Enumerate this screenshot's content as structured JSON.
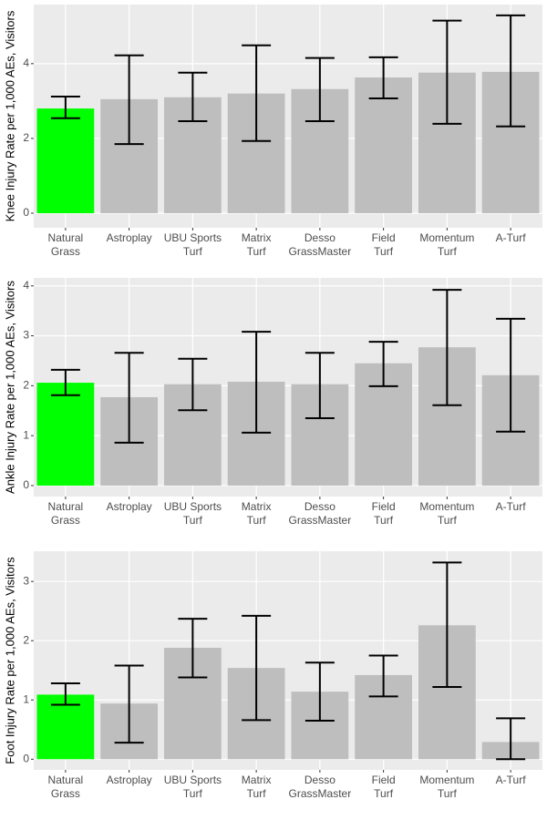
{
  "chart_data": [
    {
      "type": "bar",
      "y_label": "Knee Injury Rate per 1,000 AEs, Visitors",
      "categories": [
        "Natural\nGrass",
        "Astroplay",
        "UBU Sports\nTurf",
        "Matrix\nTurf",
        "Desso\nGrassMaster",
        "Field\nTurf",
        "Momentum\nTurf",
        "A-Turf"
      ],
      "values": [
        2.8,
        3.05,
        3.1,
        3.2,
        3.32,
        3.63,
        3.76,
        3.78
      ],
      "lower": [
        2.54,
        1.85,
        2.46,
        1.93,
        2.46,
        3.07,
        2.39,
        2.32
      ],
      "upper": [
        3.12,
        4.22,
        3.76,
        4.49,
        4.15,
        4.17,
        5.15,
        5.29
      ],
      "colors": [
        "#00ff00",
        "#bebebe",
        "#bebebe",
        "#bebebe",
        "#bebebe",
        "#bebebe",
        "#bebebe",
        "#bebebe"
      ],
      "ylim": [
        -0.39,
        5.58
      ],
      "yticks": [
        0,
        2,
        4
      ],
      "grid": true
    },
    {
      "type": "bar",
      "y_label": "Ankle Injury Rate per 1,000 AEs, Visitors",
      "categories": [
        "Natural\nGrass",
        "Astroplay",
        "UBU Sports\nTurf",
        "Matrix\nTurf",
        "Desso\nGrassMaster",
        "Field\nTurf",
        "Momentum\nTurf",
        "A-Turf"
      ],
      "values": [
        2.06,
        1.77,
        2.03,
        2.08,
        2.03,
        2.45,
        2.77,
        2.21
      ],
      "lower": [
        1.81,
        0.86,
        1.51,
        1.06,
        1.35,
        1.99,
        1.61,
        1.08
      ],
      "upper": [
        2.32,
        2.66,
        2.54,
        3.08,
        2.66,
        2.88,
        3.92,
        3.34
      ],
      "colors": [
        "#00ff00",
        "#bebebe",
        "#bebebe",
        "#bebebe",
        "#bebebe",
        "#bebebe",
        "#bebebe",
        "#bebebe"
      ],
      "ylim": [
        -0.22,
        4.16
      ],
      "yticks": [
        0,
        1,
        2,
        3,
        4
      ],
      "grid": true
    },
    {
      "type": "bar",
      "y_label": "Foot Injury Rate per 1,000 AEs, Visitors",
      "categories": [
        "Natural\nGrass",
        "Astroplay",
        "UBU Sports\nTurf",
        "Matrix\nTurf",
        "Desso\nGrassMaster",
        "Field\nTurf",
        "Momentum\nTurf",
        "A-Turf"
      ],
      "values": [
        1.09,
        0.94,
        1.88,
        1.54,
        1.14,
        1.42,
        2.26,
        0.29
      ],
      "lower": [
        0.92,
        0.28,
        1.38,
        0.66,
        0.65,
        1.06,
        1.22,
        0.0
      ],
      "upper": [
        1.28,
        1.58,
        2.37,
        2.42,
        1.63,
        1.75,
        3.32,
        0.69
      ],
      "colors": [
        "#00ff00",
        "#bebebe",
        "#bebebe",
        "#bebebe",
        "#bebebe",
        "#bebebe",
        "#bebebe",
        "#bebebe"
      ],
      "ylim": [
        -0.18,
        3.51
      ],
      "yticks": [
        0,
        1,
        2,
        3
      ],
      "grid": true
    }
  ]
}
